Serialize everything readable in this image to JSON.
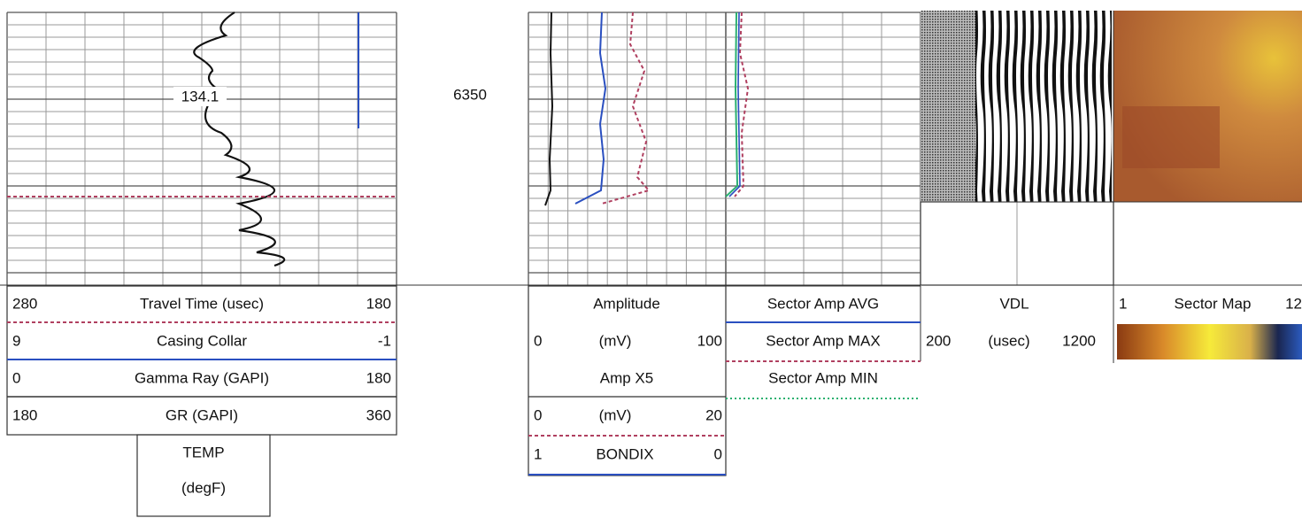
{
  "track1": {
    "annotation": "134.1"
  },
  "depth": "6350",
  "left_header": {
    "rows": [
      [
        "280",
        "Travel Time (usec)",
        "180"
      ],
      [
        "9",
        "Casing Collar",
        "-1"
      ],
      [
        "0",
        "Gamma Ray (GAPI)",
        "180"
      ],
      [
        "180",
        "GR (GAPI)",
        "360"
      ]
    ],
    "temp": [
      "TEMP",
      "(degF)"
    ]
  },
  "amp_header": {
    "rows": [
      [
        "Amplitude"
      ],
      [
        "0",
        "(mV)",
        "100"
      ],
      [
        "Amp X5"
      ],
      [
        "0",
        "(mV)",
        "20"
      ],
      [
        "1",
        "BONDIX",
        "0"
      ]
    ]
  },
  "sector_header": [
    "Sector Amp AVG",
    "Sector Amp MAX",
    "Sector Amp MIN"
  ],
  "vdl_header": {
    "title": "VDL",
    "scale": [
      "200",
      "(usec)",
      "1200"
    ]
  },
  "sector_map_header": [
    "1",
    "Sector Map",
    "12"
  ]
}
